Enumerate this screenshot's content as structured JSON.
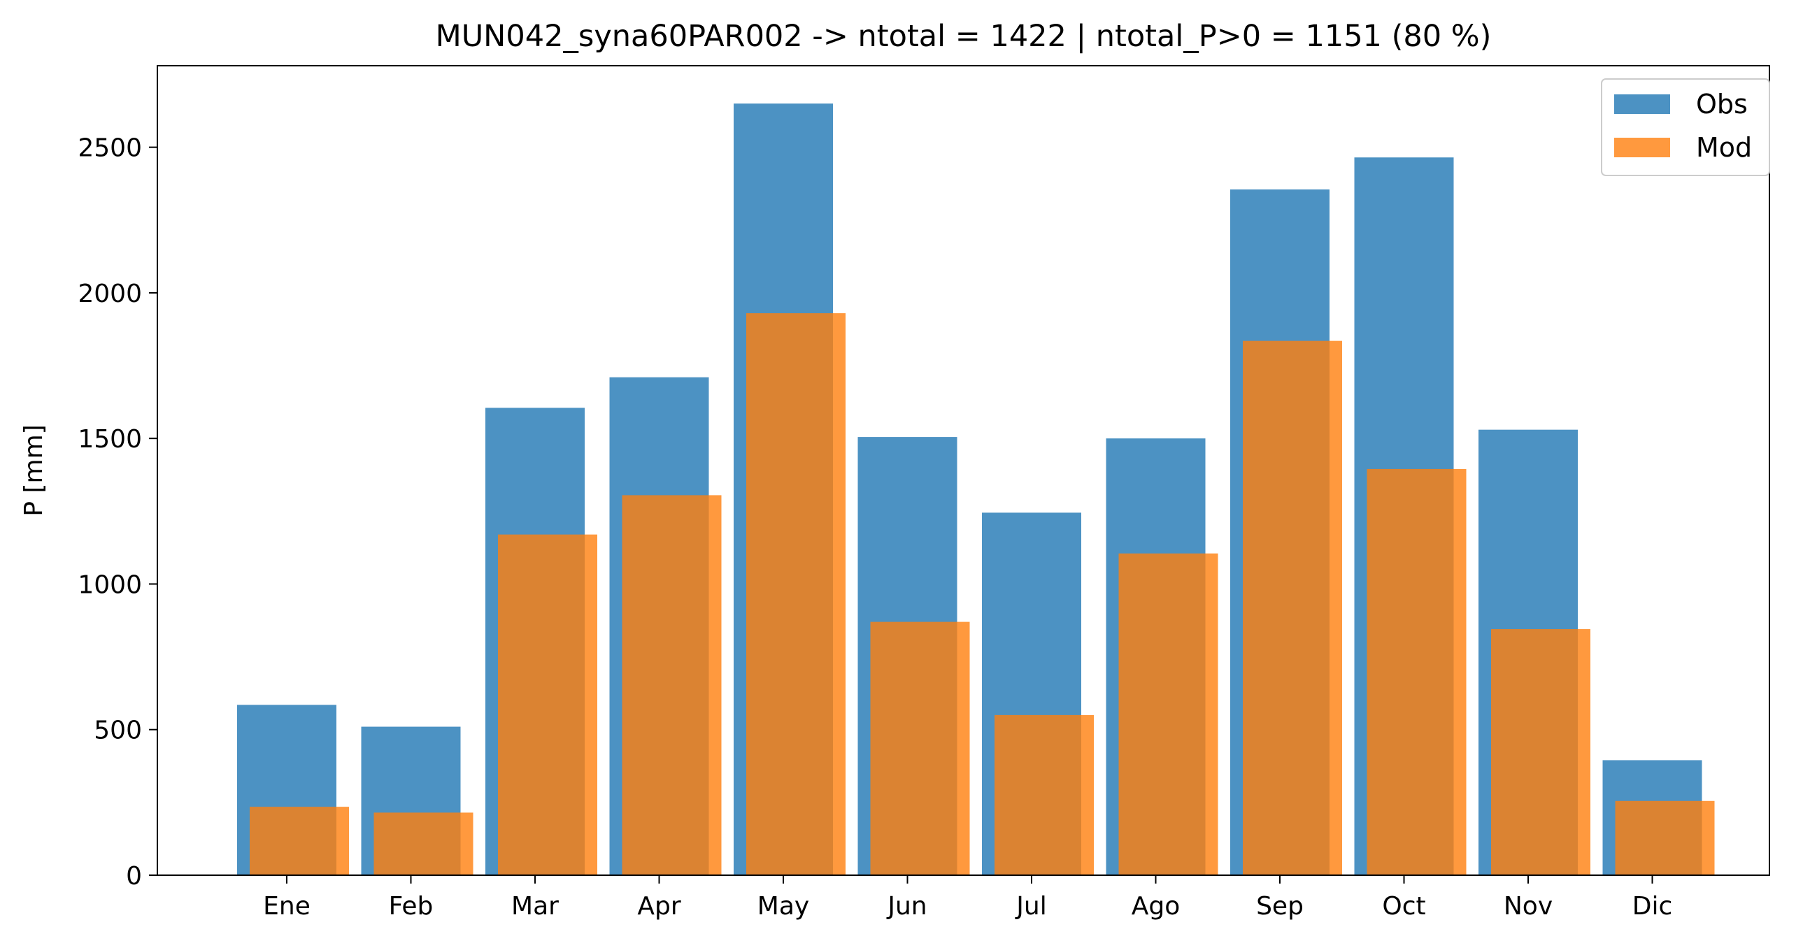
{
  "chart_data": {
    "type": "bar",
    "title": "MUN042_syna60PAR002 -> ntotal = 1422 | ntotal_P>0 = 1151 (80 %)",
    "xlabel": "",
    "ylabel": "P [mm]",
    "categories": [
      "Ene",
      "Feb",
      "Mar",
      "Apr",
      "May",
      "Jun",
      "Jul",
      "Ago",
      "Sep",
      "Oct",
      "Nov",
      "Dic"
    ],
    "series": [
      {
        "name": "Obs",
        "color": "#1f77b4",
        "opacity": 0.8,
        "values": [
          585,
          510,
          1605,
          1710,
          2650,
          1505,
          1245,
          1500,
          2355,
          2465,
          1530,
          395
        ]
      },
      {
        "name": "Mod",
        "color": "#ff7f0e",
        "opacity": 0.8,
        "values": [
          235,
          215,
          1170,
          1305,
          1930,
          870,
          550,
          1105,
          1835,
          1395,
          845,
          255
        ]
      }
    ],
    "ylim": [
      0,
      2780
    ],
    "yticks": [
      0,
      500,
      1000,
      1500,
      2000,
      2500
    ],
    "legend": "top-right",
    "grid": false
  }
}
